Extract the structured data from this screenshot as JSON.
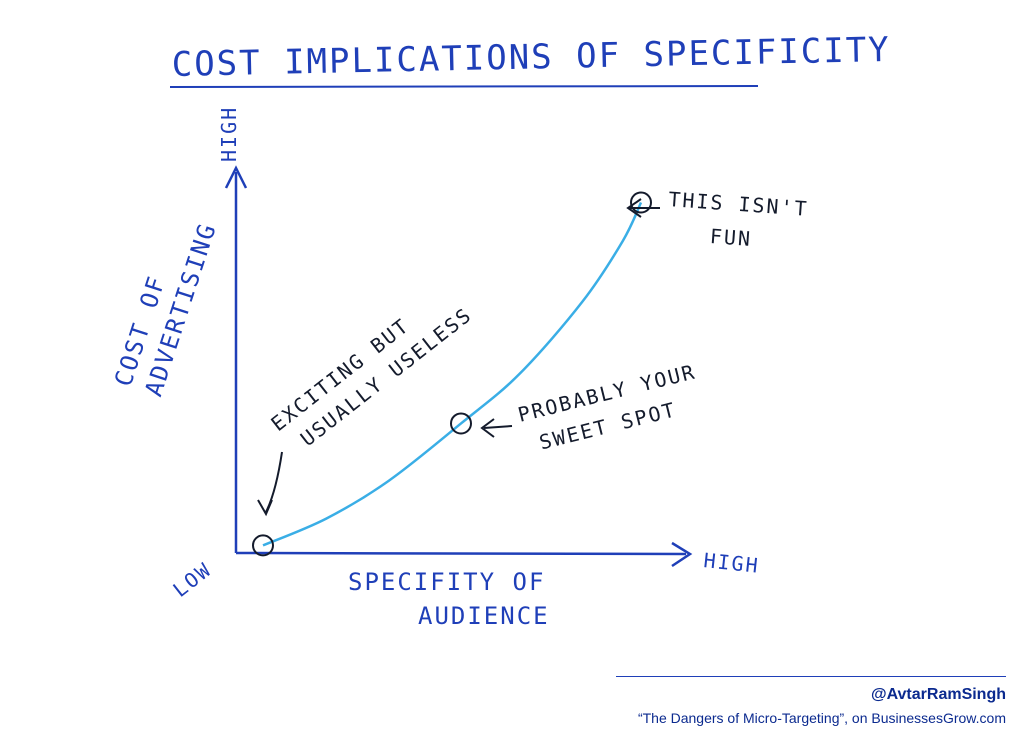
{
  "colors": {
    "ink_blue": "#1f3fb8",
    "ink_dark": "#141b2c",
    "curve": "#3aaee6",
    "credit_blue": "#0b2a8f"
  },
  "chart_data": {
    "type": "line",
    "title": "COST IMPLICATIONS OF SPECIFICITY",
    "ylabel": "COST OF ADVERTISING",
    "xlabel": "SPECIFITY OF AUDIENCE",
    "y_axis": {
      "low_label": "LOW",
      "high_label": "HIGH"
    },
    "x_axis": {
      "low_label": "LOW",
      "high_label": "HIGH"
    },
    "xlim": [
      0,
      100
    ],
    "ylim": [
      0,
      100
    ],
    "grid": false,
    "series": [
      {
        "name": "cost-curve",
        "x": [
          6,
          20,
          34,
          50,
          63,
          77,
          86,
          90
        ],
        "y": [
          2,
          9,
          19,
          34,
          47,
          66,
          82,
          92
        ]
      }
    ],
    "annotations": [
      {
        "id": "useless",
        "x": 6,
        "y": 2,
        "lines": [
          "EXCITING BUT",
          "USUALLY USELESS"
        ]
      },
      {
        "id": "sweet",
        "x": 50,
        "y": 34,
        "lines": [
          "PROBABLY YOUR",
          "SWEET SPOT"
        ]
      },
      {
        "id": "notfun",
        "x": 90,
        "y": 92,
        "lines": [
          "THIS ISN'T",
          "FUN"
        ]
      }
    ]
  },
  "credits": {
    "handle": "@AvtarRamSingh",
    "source": "“The Dangers of Micro-Targeting”, on BusinessesGrow.com"
  }
}
